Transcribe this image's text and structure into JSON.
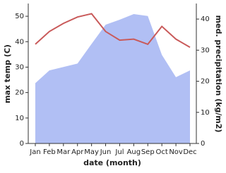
{
  "chart_data": {
    "type": "combo",
    "x_label": "date (month)",
    "y_label": "max temp (C)",
    "y2_label": "med. precipitation (kg/m2)",
    "categories": [
      "Jan",
      "Feb",
      "Mar",
      "Apr",
      "May",
      "Jun",
      "Jul",
      "Aug",
      "Sep",
      "Oct",
      "Nov",
      "Dec"
    ],
    "series": [
      {
        "name": "med. precipitation",
        "type": "area",
        "axis": "y2",
        "color": "#b1bff4",
        "values": [
          19.4,
          23.5,
          24.6,
          25.7,
          32,
          38.2,
          39.8,
          41.6,
          41,
          28.5,
          21.3,
          23.5
        ]
      },
      {
        "name": "max temp",
        "type": "line",
        "axis": "y",
        "color": "#c95a5a",
        "values": [
          39,
          44,
          47.2,
          49.7,
          51,
          44,
          40.6,
          41,
          39,
          46,
          41,
          37.8
        ]
      }
    ],
    "ylim": [
      0,
      55
    ],
    "yticks": [
      0,
      10,
      20,
      30,
      40,
      50
    ],
    "y2lim": [
      0,
      45
    ],
    "y2ticks": [
      0,
      10,
      20,
      30,
      40
    ]
  }
}
